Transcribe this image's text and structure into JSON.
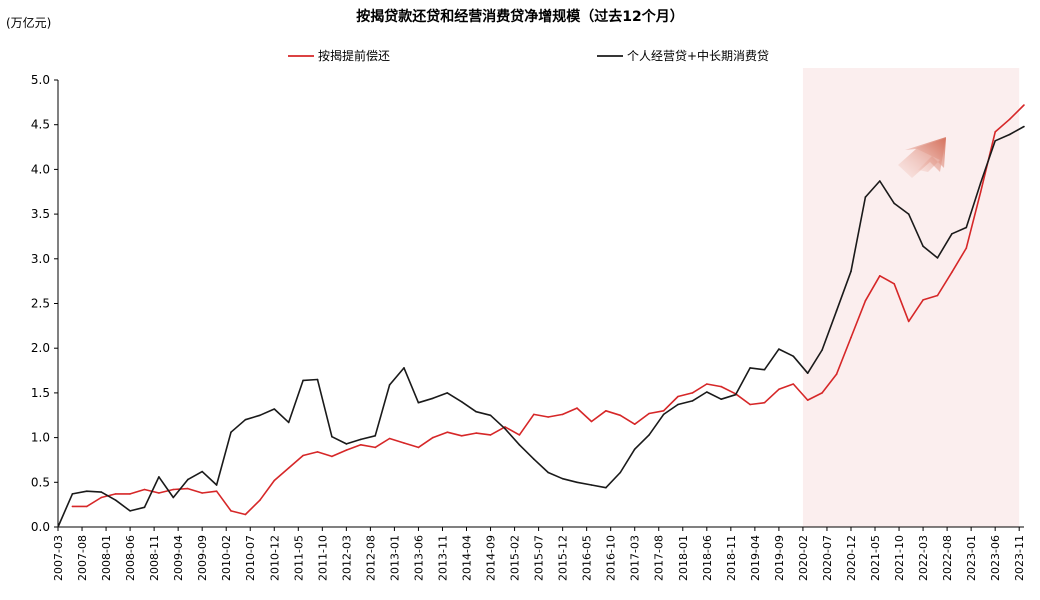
{
  "chart_data": {
    "type": "line",
    "title": "按揭贷款还贷和经营消费贷净增规模（过去12个月）",
    "unit_label": "(万亿元)",
    "ylim": [
      0,
      5.0
    ],
    "yticks": [
      "0.0",
      "0.5",
      "1.0",
      "1.5",
      "2.0",
      "2.5",
      "3.0",
      "3.5",
      "4.0",
      "4.5",
      "5.0"
    ],
    "x_tick_labels": [
      "2007-03",
      "2007-08",
      "2008-01",
      "2008-06",
      "2008-11",
      "2009-04",
      "2009-09",
      "2010-02",
      "2010-07",
      "2010-12",
      "2011-05",
      "2011-10",
      "2012-03",
      "2012-08",
      "2013-01",
      "2013-06",
      "2013-11",
      "2014-04",
      "2014-09",
      "2015-02",
      "2015-07",
      "2015-12",
      "2016-05",
      "2016-10",
      "2017-03",
      "2017-08",
      "2018-01",
      "2018-06",
      "2018-11",
      "2019-04",
      "2019-09",
      "2020-02",
      "2020-07",
      "2020-12",
      "2021-05",
      "2021-10",
      "2022-03",
      "2022-08",
      "2023-01",
      "2023-06",
      "2023-11"
    ],
    "highlight": {
      "from": "2020-02",
      "to": "2023-11",
      "color": "#fbeeee"
    },
    "series": [
      {
        "name": "按揭提前偿还",
        "color": "#d62728",
        "points": [
          [
            "2007-06",
            0.23
          ],
          [
            "2007-09",
            0.23
          ],
          [
            "2007-12",
            0.33
          ],
          [
            "2008-03",
            0.37
          ],
          [
            "2008-06",
            0.37
          ],
          [
            "2008-09",
            0.42
          ],
          [
            "2008-12",
            0.38
          ],
          [
            "2009-03",
            0.42
          ],
          [
            "2009-06",
            0.43
          ],
          [
            "2009-09",
            0.38
          ],
          [
            "2009-12",
            0.4
          ],
          [
            "2010-03",
            0.18
          ],
          [
            "2010-06",
            0.14
          ],
          [
            "2010-09",
            0.3
          ],
          [
            "2010-12",
            0.52
          ],
          [
            "2011-03",
            0.66
          ],
          [
            "2011-06",
            0.8
          ],
          [
            "2011-09",
            0.84
          ],
          [
            "2011-12",
            0.79
          ],
          [
            "2012-03",
            0.86
          ],
          [
            "2012-06",
            0.92
          ],
          [
            "2012-09",
            0.89
          ],
          [
            "2012-12",
            0.99
          ],
          [
            "2013-03",
            0.94
          ],
          [
            "2013-06",
            0.89
          ],
          [
            "2013-09",
            1.0
          ],
          [
            "2013-12",
            1.06
          ],
          [
            "2014-03",
            1.02
          ],
          [
            "2014-06",
            1.05
          ],
          [
            "2014-09",
            1.03
          ],
          [
            "2014-12",
            1.12
          ],
          [
            "2015-03",
            1.03
          ],
          [
            "2015-06",
            1.26
          ],
          [
            "2015-09",
            1.23
          ],
          [
            "2015-12",
            1.26
          ],
          [
            "2016-03",
            1.33
          ],
          [
            "2016-06",
            1.18
          ],
          [
            "2016-09",
            1.3
          ],
          [
            "2016-12",
            1.25
          ],
          [
            "2017-03",
            1.15
          ],
          [
            "2017-06",
            1.27
          ],
          [
            "2017-09",
            1.3
          ],
          [
            "2017-12",
            1.46
          ],
          [
            "2018-03",
            1.5
          ],
          [
            "2018-06",
            1.6
          ],
          [
            "2018-09",
            1.57
          ],
          [
            "2018-12",
            1.49
          ],
          [
            "2019-03",
            1.37
          ],
          [
            "2019-06",
            1.39
          ],
          [
            "2019-09",
            1.54
          ],
          [
            "2019-12",
            1.6
          ],
          [
            "2020-03",
            1.42
          ],
          [
            "2020-06",
            1.5
          ],
          [
            "2020-09",
            1.71
          ],
          [
            "2020-12",
            2.12
          ],
          [
            "2021-03",
            2.53
          ],
          [
            "2021-06",
            2.81
          ],
          [
            "2021-09",
            2.72
          ],
          [
            "2021-12",
            2.3
          ],
          [
            "2022-03",
            2.54
          ],
          [
            "2022-06",
            2.59
          ],
          [
            "2022-09",
            2.85
          ],
          [
            "2022-12",
            3.12
          ],
          [
            "2023-03",
            3.75
          ],
          [
            "2023-06",
            4.42
          ],
          [
            "2023-09",
            4.56
          ],
          [
            "2023-12",
            4.72
          ]
        ]
      },
      {
        "name": "个人经营贷+中长期消费贷",
        "color": "#1a1a1a",
        "points": [
          [
            "2007-03",
            0.0
          ],
          [
            "2007-06",
            0.37
          ],
          [
            "2007-09",
            0.4
          ],
          [
            "2007-12",
            0.39
          ],
          [
            "2008-03",
            0.3
          ],
          [
            "2008-06",
            0.18
          ],
          [
            "2008-09",
            0.22
          ],
          [
            "2008-12",
            0.56
          ],
          [
            "2009-03",
            0.33
          ],
          [
            "2009-06",
            0.53
          ],
          [
            "2009-09",
            0.62
          ],
          [
            "2009-12",
            0.47
          ],
          [
            "2010-03",
            1.06
          ],
          [
            "2010-06",
            1.2
          ],
          [
            "2010-09",
            1.25
          ],
          [
            "2010-12",
            1.32
          ],
          [
            "2011-03",
            1.17
          ],
          [
            "2011-06",
            1.64
          ],
          [
            "2011-09",
            1.65
          ],
          [
            "2011-12",
            1.01
          ],
          [
            "2012-03",
            0.93
          ],
          [
            "2012-06",
            0.98
          ],
          [
            "2012-09",
            1.02
          ],
          [
            "2012-12",
            1.59
          ],
          [
            "2013-03",
            1.78
          ],
          [
            "2013-06",
            1.39
          ],
          [
            "2013-09",
            1.44
          ],
          [
            "2013-12",
            1.5
          ],
          [
            "2014-03",
            1.4
          ],
          [
            "2014-06",
            1.29
          ],
          [
            "2014-09",
            1.25
          ],
          [
            "2014-12",
            1.1
          ],
          [
            "2015-03",
            0.92
          ],
          [
            "2015-06",
            0.76
          ],
          [
            "2015-09",
            0.61
          ],
          [
            "2015-12",
            0.54
          ],
          [
            "2016-03",
            0.5
          ],
          [
            "2016-06",
            0.47
          ],
          [
            "2016-09",
            0.44
          ],
          [
            "2016-12",
            0.61
          ],
          [
            "2017-03",
            0.87
          ],
          [
            "2017-06",
            1.03
          ],
          [
            "2017-09",
            1.26
          ],
          [
            "2017-12",
            1.37
          ],
          [
            "2018-03",
            1.41
          ],
          [
            "2018-06",
            1.51
          ],
          [
            "2018-09",
            1.43
          ],
          [
            "2018-12",
            1.48
          ],
          [
            "2019-03",
            1.78
          ],
          [
            "2019-06",
            1.76
          ],
          [
            "2019-09",
            1.99
          ],
          [
            "2019-12",
            1.91
          ],
          [
            "2020-03",
            1.72
          ],
          [
            "2020-06",
            1.98
          ],
          [
            "2020-09",
            2.42
          ],
          [
            "2020-12",
            2.86
          ],
          [
            "2021-03",
            3.69
          ],
          [
            "2021-06",
            3.87
          ],
          [
            "2021-09",
            3.62
          ],
          [
            "2021-12",
            3.5
          ],
          [
            "2022-03",
            3.14
          ],
          [
            "2022-06",
            3.01
          ],
          [
            "2022-09",
            3.28
          ],
          [
            "2022-12",
            3.35
          ],
          [
            "2023-03",
            3.85
          ],
          [
            "2023-06",
            4.32
          ],
          [
            "2023-09",
            4.39
          ],
          [
            "2023-12",
            4.48
          ]
        ]
      }
    ]
  }
}
